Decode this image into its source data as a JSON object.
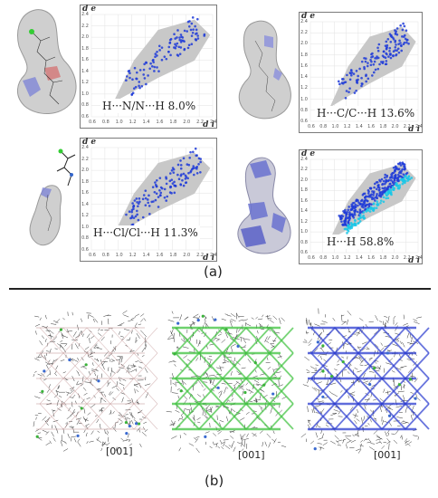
{
  "panel_a": {
    "caption": "(a)",
    "axis": {
      "y_letter": "d e",
      "x_letter": "d i",
      "y_ticks": [
        "2.4",
        "2.2",
        "2.0",
        "1.8",
        "1.6",
        "1.4",
        "1.2",
        "1.0",
        "0.8",
        "0.6"
      ],
      "x_ticks": [
        "0.6",
        "0.8",
        "1.0",
        "1.2",
        "1.4",
        "1.6",
        "1.8",
        "2.0",
        "2.2",
        "2.4"
      ]
    },
    "plots": [
      {
        "label": "H···N/N···H  8.0%",
        "contact": "H-N",
        "percent": 8.0
      },
      {
        "label": "H···C/C···H  13.6%",
        "contact": "H-C",
        "percent": 13.6
      },
      {
        "label": "H···Cl/Cl···H  11.3%",
        "contact": "H-Cl",
        "percent": 11.3
      },
      {
        "label": "H···H  58.8%",
        "contact": "H-H",
        "percent": 58.8
      }
    ]
  },
  "panel_b": {
    "caption": "(b)",
    "views": [
      {
        "direction": "[001]",
        "network_color": "#c9a0a0"
      },
      {
        "direction": "[001]",
        "network_color": "#3ec23e"
      },
      {
        "direction": "[001]",
        "network_color": "#2a3bd0"
      }
    ]
  },
  "colors": {
    "surface_gray": "#c8c8c8",
    "fingerprint_blue": "#1f3bd8",
    "fingerprint_cyan": "#17c7e8",
    "divider": "#222222"
  }
}
